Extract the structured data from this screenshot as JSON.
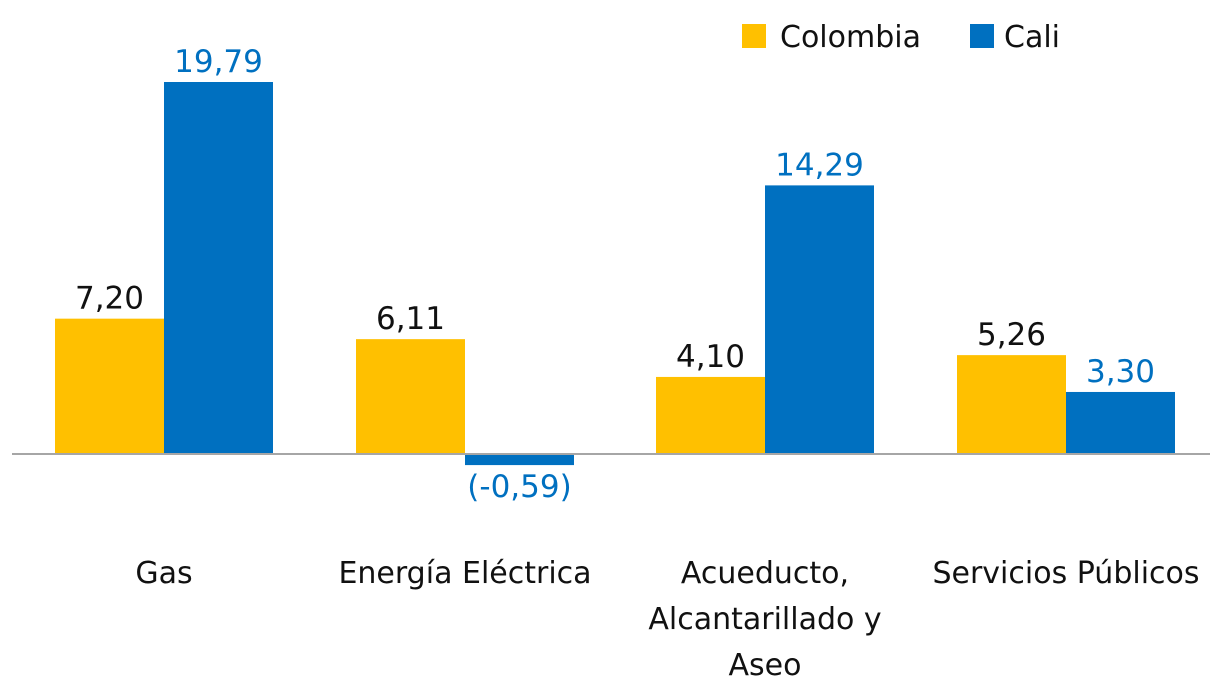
{
  "chart_data": {
    "type": "bar",
    "categories": [
      [
        "Gas"
      ],
      [
        "Energía Eléctrica"
      ],
      [
        "Acueducto,",
        "Alcantarillado y",
        "Aseo"
      ],
      [
        "Servicios Públicos"
      ]
    ],
    "series": [
      {
        "name": "Colombia",
        "color": "#FFC000",
        "label_color": "#111111",
        "values": [
          7.2,
          6.11,
          4.1,
          5.26
        ],
        "labels": [
          "7,20",
          "6,11",
          "4,10",
          "5,26"
        ]
      },
      {
        "name": "Cali",
        "color": "#0070C0",
        "label_color": "#0070C0",
        "values": [
          19.79,
          -0.59,
          14.29,
          3.3
        ],
        "labels": [
          "19,79",
          "(-0,59)",
          "14,29",
          "3,30"
        ]
      }
    ],
    "ylim": [
      -0.59,
      19.79
    ],
    "grid": false,
    "legend": "top-right",
    "axis_color": "#A6A6A6"
  }
}
